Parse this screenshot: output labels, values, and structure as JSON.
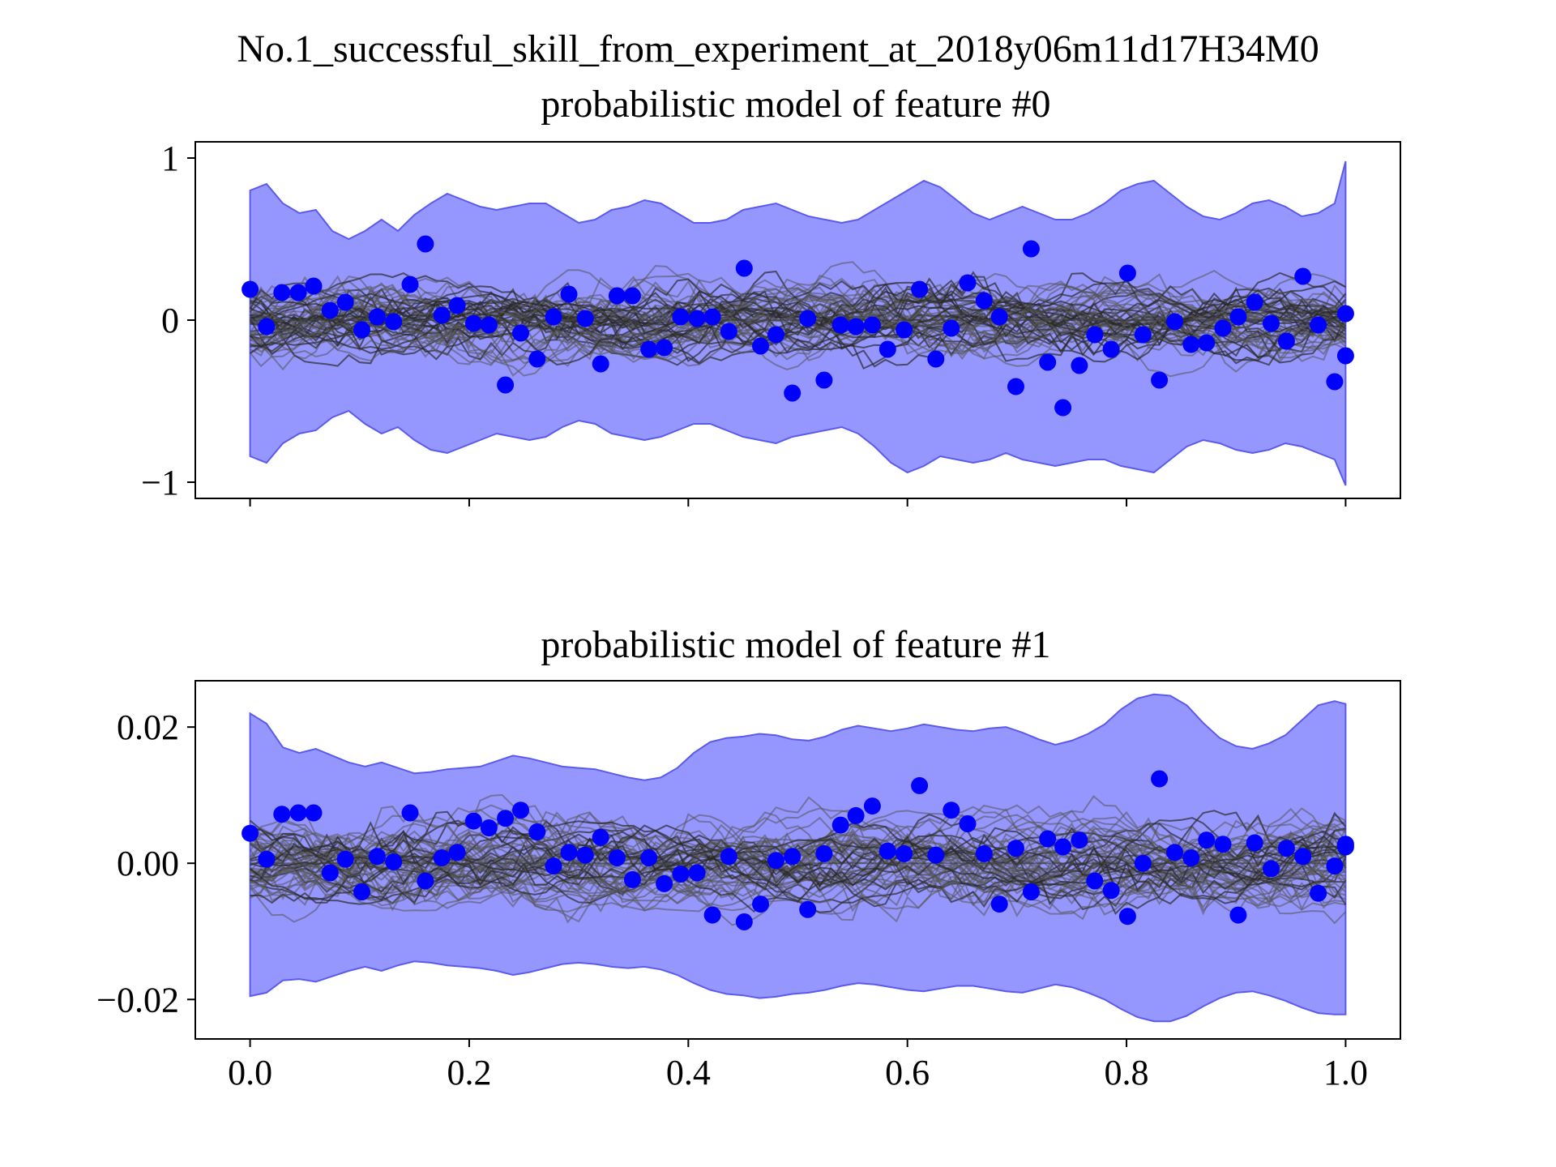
{
  "figure": {
    "suptitle": "No.1_successful_skill_from_experiment_at_2018y06m11d17H34M0"
  },
  "colors": {
    "band_fill": "#9696ff",
    "band_edge": "#5a5aef",
    "samples": "#555555",
    "points": "#0000ff",
    "axes": "#000000"
  },
  "chart_data": [
    {
      "type": "scatter",
      "title": "probabilistic model of feature #0",
      "xlabel": "",
      "ylabel": "",
      "xlim": [
        -0.05,
        1.05
      ],
      "ylim": [
        -1.1,
        1.1
      ],
      "xticks": [
        0.0,
        0.2,
        0.4,
        0.6,
        0.8,
        1.0
      ],
      "xtick_labels": [],
      "yticks": [
        1,
        0,
        -1
      ],
      "ytick_labels": [
        "1",
        "0",
        "−1"
      ],
      "grid": false,
      "band": {
        "x": [
          0.0,
          0.015,
          0.03,
          0.045,
          0.06,
          0.075,
          0.09,
          0.105,
          0.12,
          0.135,
          0.15,
          0.165,
          0.18,
          0.195,
          0.21,
          0.225,
          0.24,
          0.255,
          0.27,
          0.285,
          0.3,
          0.315,
          0.33,
          0.345,
          0.36,
          0.375,
          0.39,
          0.405,
          0.42,
          0.435,
          0.45,
          0.465,
          0.48,
          0.495,
          0.51,
          0.525,
          0.54,
          0.555,
          0.57,
          0.585,
          0.6,
          0.615,
          0.63,
          0.645,
          0.66,
          0.675,
          0.69,
          0.705,
          0.72,
          0.735,
          0.75,
          0.765,
          0.78,
          0.795,
          0.81,
          0.825,
          0.84,
          0.855,
          0.87,
          0.885,
          0.9,
          0.915,
          0.93,
          0.945,
          0.96,
          0.975,
          0.99,
          1.0
        ],
        "upper": [
          0.8,
          0.84,
          0.72,
          0.66,
          0.68,
          0.55,
          0.5,
          0.55,
          0.62,
          0.55,
          0.65,
          0.72,
          0.78,
          0.74,
          0.7,
          0.68,
          0.7,
          0.72,
          0.72,
          0.66,
          0.6,
          0.62,
          0.68,
          0.7,
          0.74,
          0.72,
          0.66,
          0.6,
          0.6,
          0.62,
          0.68,
          0.7,
          0.72,
          0.68,
          0.64,
          0.62,
          0.6,
          0.62,
          0.68,
          0.74,
          0.8,
          0.86,
          0.82,
          0.74,
          0.66,
          0.62,
          0.66,
          0.7,
          0.66,
          0.62,
          0.62,
          0.66,
          0.72,
          0.8,
          0.84,
          0.86,
          0.78,
          0.7,
          0.64,
          0.62,
          0.66,
          0.72,
          0.74,
          0.7,
          0.64,
          0.66,
          0.72,
          0.98
        ],
        "lower": [
          -0.84,
          -0.88,
          -0.76,
          -0.7,
          -0.68,
          -0.6,
          -0.56,
          -0.64,
          -0.7,
          -0.66,
          -0.74,
          -0.8,
          -0.82,
          -0.78,
          -0.74,
          -0.7,
          -0.72,
          -0.74,
          -0.72,
          -0.66,
          -0.62,
          -0.64,
          -0.7,
          -0.72,
          -0.74,
          -0.72,
          -0.68,
          -0.64,
          -0.64,
          -0.68,
          -0.72,
          -0.74,
          -0.76,
          -0.72,
          -0.7,
          -0.68,
          -0.66,
          -0.7,
          -0.78,
          -0.88,
          -0.94,
          -0.9,
          -0.84,
          -0.86,
          -0.88,
          -0.86,
          -0.82,
          -0.86,
          -0.88,
          -0.9,
          -0.88,
          -0.86,
          -0.86,
          -0.9,
          -0.92,
          -0.94,
          -0.86,
          -0.78,
          -0.74,
          -0.76,
          -0.8,
          -0.82,
          -0.8,
          -0.76,
          -0.78,
          -0.82,
          -0.86,
          -1.02
        ]
      },
      "points": {
        "x": [
          0.0,
          0.015,
          0.029,
          0.044,
          0.058,
          0.073,
          0.087,
          0.102,
          0.116,
          0.131,
          0.146,
          0.16,
          0.175,
          0.189,
          0.204,
          0.218,
          0.233,
          0.247,
          0.262,
          0.277,
          0.291,
          0.306,
          0.32,
          0.335,
          0.349,
          0.364,
          0.378,
          0.393,
          0.408,
          0.422,
          0.437,
          0.451,
          0.466,
          0.48,
          0.495,
          0.509,
          0.524,
          0.539,
          0.553,
          0.568,
          0.582,
          0.597,
          0.611,
          0.626,
          0.64,
          0.655,
          0.67,
          0.684,
          0.699,
          0.713,
          0.728,
          0.742,
          0.757,
          0.771,
          0.786,
          0.801,
          0.815,
          0.83,
          0.844,
          0.859,
          0.873,
          0.888,
          0.902,
          0.917,
          0.932,
          0.946,
          0.961,
          0.975,
          0.99,
          1.0,
          1.0
        ],
        "y": [
          0.19,
          -0.04,
          0.17,
          0.17,
          0.21,
          0.06,
          0.11,
          -0.06,
          0.02,
          -0.01,
          0.22,
          0.47,
          0.03,
          0.09,
          -0.02,
          -0.03,
          -0.4,
          -0.08,
          -0.24,
          0.02,
          0.16,
          0.01,
          -0.27,
          0.15,
          0.15,
          -0.18,
          -0.17,
          0.02,
          0.01,
          0.02,
          -0.07,
          0.32,
          -0.16,
          -0.09,
          -0.45,
          0.01,
          -0.37,
          -0.03,
          -0.04,
          -0.03,
          -0.18,
          -0.06,
          0.19,
          -0.24,
          -0.05,
          0.23,
          0.12,
          0.02,
          -0.41,
          0.44,
          -0.26,
          -0.54,
          -0.28,
          -0.09,
          -0.18,
          0.29,
          -0.09,
          -0.37,
          -0.01,
          -0.15,
          -0.14,
          -0.05,
          0.02,
          0.11,
          -0.02,
          -0.13,
          0.27,
          -0.03,
          -0.38,
          0.04,
          -0.22
        ]
      },
      "sample_amplitude": 0.22
    },
    {
      "type": "scatter",
      "title": "probabilistic model of feature #1",
      "xlabel": "",
      "ylabel": "",
      "xlim": [
        -0.05,
        1.05
      ],
      "ylim": [
        -0.0258,
        0.0268
      ],
      "xticks": [
        0.0,
        0.2,
        0.4,
        0.6,
        0.8,
        1.0
      ],
      "xtick_labels": [
        "0.0",
        "0.2",
        "0.4",
        "0.6",
        "0.8",
        "1.0"
      ],
      "yticks": [
        0.02,
        0.0,
        -0.02
      ],
      "ytick_labels": [
        "0.02",
        "0.00",
        "−0.02"
      ],
      "grid": false,
      "band": {
        "x": [
          0.0,
          0.015,
          0.03,
          0.045,
          0.06,
          0.075,
          0.09,
          0.105,
          0.12,
          0.135,
          0.15,
          0.165,
          0.18,
          0.195,
          0.21,
          0.225,
          0.24,
          0.255,
          0.27,
          0.285,
          0.3,
          0.315,
          0.33,
          0.345,
          0.36,
          0.375,
          0.39,
          0.405,
          0.42,
          0.435,
          0.45,
          0.465,
          0.48,
          0.495,
          0.51,
          0.525,
          0.54,
          0.555,
          0.57,
          0.585,
          0.6,
          0.615,
          0.63,
          0.645,
          0.66,
          0.675,
          0.69,
          0.705,
          0.72,
          0.735,
          0.75,
          0.765,
          0.78,
          0.795,
          0.81,
          0.825,
          0.84,
          0.855,
          0.87,
          0.885,
          0.9,
          0.915,
          0.93,
          0.945,
          0.96,
          0.975,
          0.99,
          1.0
        ],
        "upper": [
          0.022,
          0.0205,
          0.017,
          0.0162,
          0.0168,
          0.0158,
          0.0148,
          0.0142,
          0.0148,
          0.014,
          0.0132,
          0.0134,
          0.0138,
          0.014,
          0.0142,
          0.015,
          0.0158,
          0.0154,
          0.0148,
          0.0142,
          0.014,
          0.0138,
          0.0132,
          0.0126,
          0.0122,
          0.0126,
          0.014,
          0.0162,
          0.0178,
          0.0184,
          0.0186,
          0.019,
          0.0188,
          0.0182,
          0.018,
          0.0186,
          0.0196,
          0.0202,
          0.0198,
          0.0194,
          0.0198,
          0.0204,
          0.02,
          0.0196,
          0.0194,
          0.0198,
          0.02,
          0.0192,
          0.0182,
          0.0174,
          0.018,
          0.019,
          0.0204,
          0.0226,
          0.0242,
          0.0248,
          0.0246,
          0.0232,
          0.0206,
          0.0184,
          0.0172,
          0.0168,
          0.0176,
          0.0188,
          0.021,
          0.0232,
          0.0238,
          0.0234
        ],
        "lower": [
          -0.0195,
          -0.019,
          -0.0172,
          -0.017,
          -0.0174,
          -0.0166,
          -0.0158,
          -0.0152,
          -0.0158,
          -0.015,
          -0.0144,
          -0.0146,
          -0.015,
          -0.0152,
          -0.0154,
          -0.0158,
          -0.0164,
          -0.016,
          -0.0154,
          -0.0148,
          -0.0146,
          -0.0148,
          -0.0152,
          -0.0154,
          -0.0152,
          -0.0156,
          -0.0164,
          -0.0176,
          -0.0186,
          -0.0192,
          -0.0194,
          -0.0198,
          -0.0196,
          -0.0192,
          -0.019,
          -0.0186,
          -0.018,
          -0.0176,
          -0.0178,
          -0.0182,
          -0.0186,
          -0.0188,
          -0.0184,
          -0.018,
          -0.018,
          -0.0184,
          -0.0188,
          -0.019,
          -0.0184,
          -0.0178,
          -0.0182,
          -0.019,
          -0.02,
          -0.0214,
          -0.0226,
          -0.0232,
          -0.0232,
          -0.0224,
          -0.021,
          -0.0198,
          -0.019,
          -0.0188,
          -0.0194,
          -0.0202,
          -0.0212,
          -0.022,
          -0.0222,
          -0.0222
        ]
      },
      "points": {
        "x": [
          0.0,
          0.015,
          0.029,
          0.044,
          0.058,
          0.073,
          0.087,
          0.102,
          0.116,
          0.131,
          0.146,
          0.16,
          0.175,
          0.189,
          0.204,
          0.218,
          0.233,
          0.247,
          0.262,
          0.277,
          0.291,
          0.306,
          0.32,
          0.335,
          0.349,
          0.364,
          0.378,
          0.393,
          0.408,
          0.422,
          0.437,
          0.451,
          0.466,
          0.48,
          0.495,
          0.509,
          0.524,
          0.539,
          0.553,
          0.568,
          0.582,
          0.597,
          0.611,
          0.626,
          0.64,
          0.655,
          0.67,
          0.684,
          0.699,
          0.713,
          0.728,
          0.742,
          0.757,
          0.771,
          0.786,
          0.801,
          0.815,
          0.83,
          0.844,
          0.859,
          0.873,
          0.888,
          0.902,
          0.917,
          0.932,
          0.946,
          0.961,
          0.975,
          0.99,
          1.0,
          1.0
        ],
        "y": [
          0.0044,
          0.0006,
          0.0072,
          0.0074,
          0.0074,
          -0.0014,
          0.0006,
          -0.0042,
          0.001,
          0.0002,
          0.0074,
          -0.0026,
          0.0008,
          0.0016,
          0.0062,
          0.0052,
          0.0066,
          0.0078,
          0.0046,
          -0.0004,
          0.0016,
          0.0012,
          0.0038,
          0.0008,
          -0.0024,
          0.0008,
          -0.003,
          -0.0016,
          -0.0014,
          -0.0076,
          0.001,
          -0.0086,
          -0.006,
          0.0004,
          0.001,
          -0.0068,
          0.0014,
          0.0056,
          0.007,
          0.0084,
          0.0018,
          0.0014,
          0.0114,
          0.0012,
          0.0078,
          0.0058,
          0.0014,
          -0.006,
          0.0022,
          -0.0042,
          0.0036,
          0.0024,
          0.0034,
          -0.0026,
          -0.004,
          -0.0078,
          0.0,
          0.0124,
          0.0016,
          0.0008,
          0.0034,
          0.0028,
          -0.0076,
          0.003,
          -0.0008,
          0.0022,
          0.001,
          -0.0044,
          -0.0004,
          0.0028,
          0.0024
        ]
      },
      "sample_amplitude": 0.0062
    }
  ]
}
